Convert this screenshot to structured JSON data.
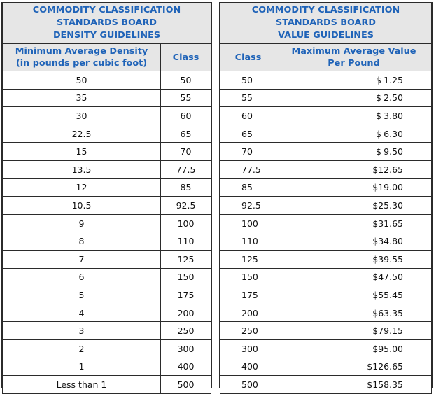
{
  "density": {
    "title": [
      "COMMODITY CLASSIFICATION",
      "STANDARDS BOARD",
      "DENSITY GUIDELINES"
    ],
    "col_density": [
      "Minimum Average Density",
      "(in pounds per cubic foot)"
    ],
    "col_class": "Class",
    "rows": [
      {
        "density": "50",
        "cls": "50"
      },
      {
        "density": "35",
        "cls": "55"
      },
      {
        "density": "30",
        "cls": "60"
      },
      {
        "density": "22.5",
        "cls": "65"
      },
      {
        "density": "15",
        "cls": "70"
      },
      {
        "density": "13.5",
        "cls": "77.5"
      },
      {
        "density": "12",
        "cls": "85"
      },
      {
        "density": "10.5",
        "cls": "92.5"
      },
      {
        "density": "9",
        "cls": "100"
      },
      {
        "density": "8",
        "cls": "110"
      },
      {
        "density": "7",
        "cls": "125"
      },
      {
        "density": "6",
        "cls": "150"
      },
      {
        "density": "5",
        "cls": "175"
      },
      {
        "density": "4",
        "cls": "200"
      },
      {
        "density": "3",
        "cls": "250"
      },
      {
        "density": "2",
        "cls": "300"
      },
      {
        "density": "1",
        "cls": "400"
      },
      {
        "density": "Less than 1",
        "cls": "500"
      }
    ]
  },
  "value": {
    "title": [
      "COMMODITY CLASSIFICATION",
      "STANDARDS BOARD",
      "VALUE GUIDELINES"
    ],
    "col_class": "Class",
    "col_value": [
      "Maximum Average Value",
      "Per Pound"
    ],
    "currency": "$",
    "rows": [
      {
        "cls": "50",
        "value": "1.25"
      },
      {
        "cls": "55",
        "value": "2.50"
      },
      {
        "cls": "60",
        "value": "3.80"
      },
      {
        "cls": "65",
        "value": "6.30"
      },
      {
        "cls": "70",
        "value": "9.50"
      },
      {
        "cls": "77.5",
        "value": "12.65"
      },
      {
        "cls": "85",
        "value": "19.00"
      },
      {
        "cls": "92.5",
        "value": "25.30"
      },
      {
        "cls": "100",
        "value": "31.65"
      },
      {
        "cls": "110",
        "value": "34.80"
      },
      {
        "cls": "125",
        "value": "39.55"
      },
      {
        "cls": "150",
        "value": "47.50"
      },
      {
        "cls": "175",
        "value": "55.45"
      },
      {
        "cls": "200",
        "value": "63.35"
      },
      {
        "cls": "250",
        "value": "79.15"
      },
      {
        "cls": "300",
        "value": "95.00"
      },
      {
        "cls": "400",
        "value": "126.65"
      },
      {
        "cls": "500",
        "value": "158.35"
      }
    ]
  },
  "colors": {
    "header_text": "#1f63b8",
    "header_bg": "#e6e6e6",
    "border": "#2b2b2b"
  }
}
